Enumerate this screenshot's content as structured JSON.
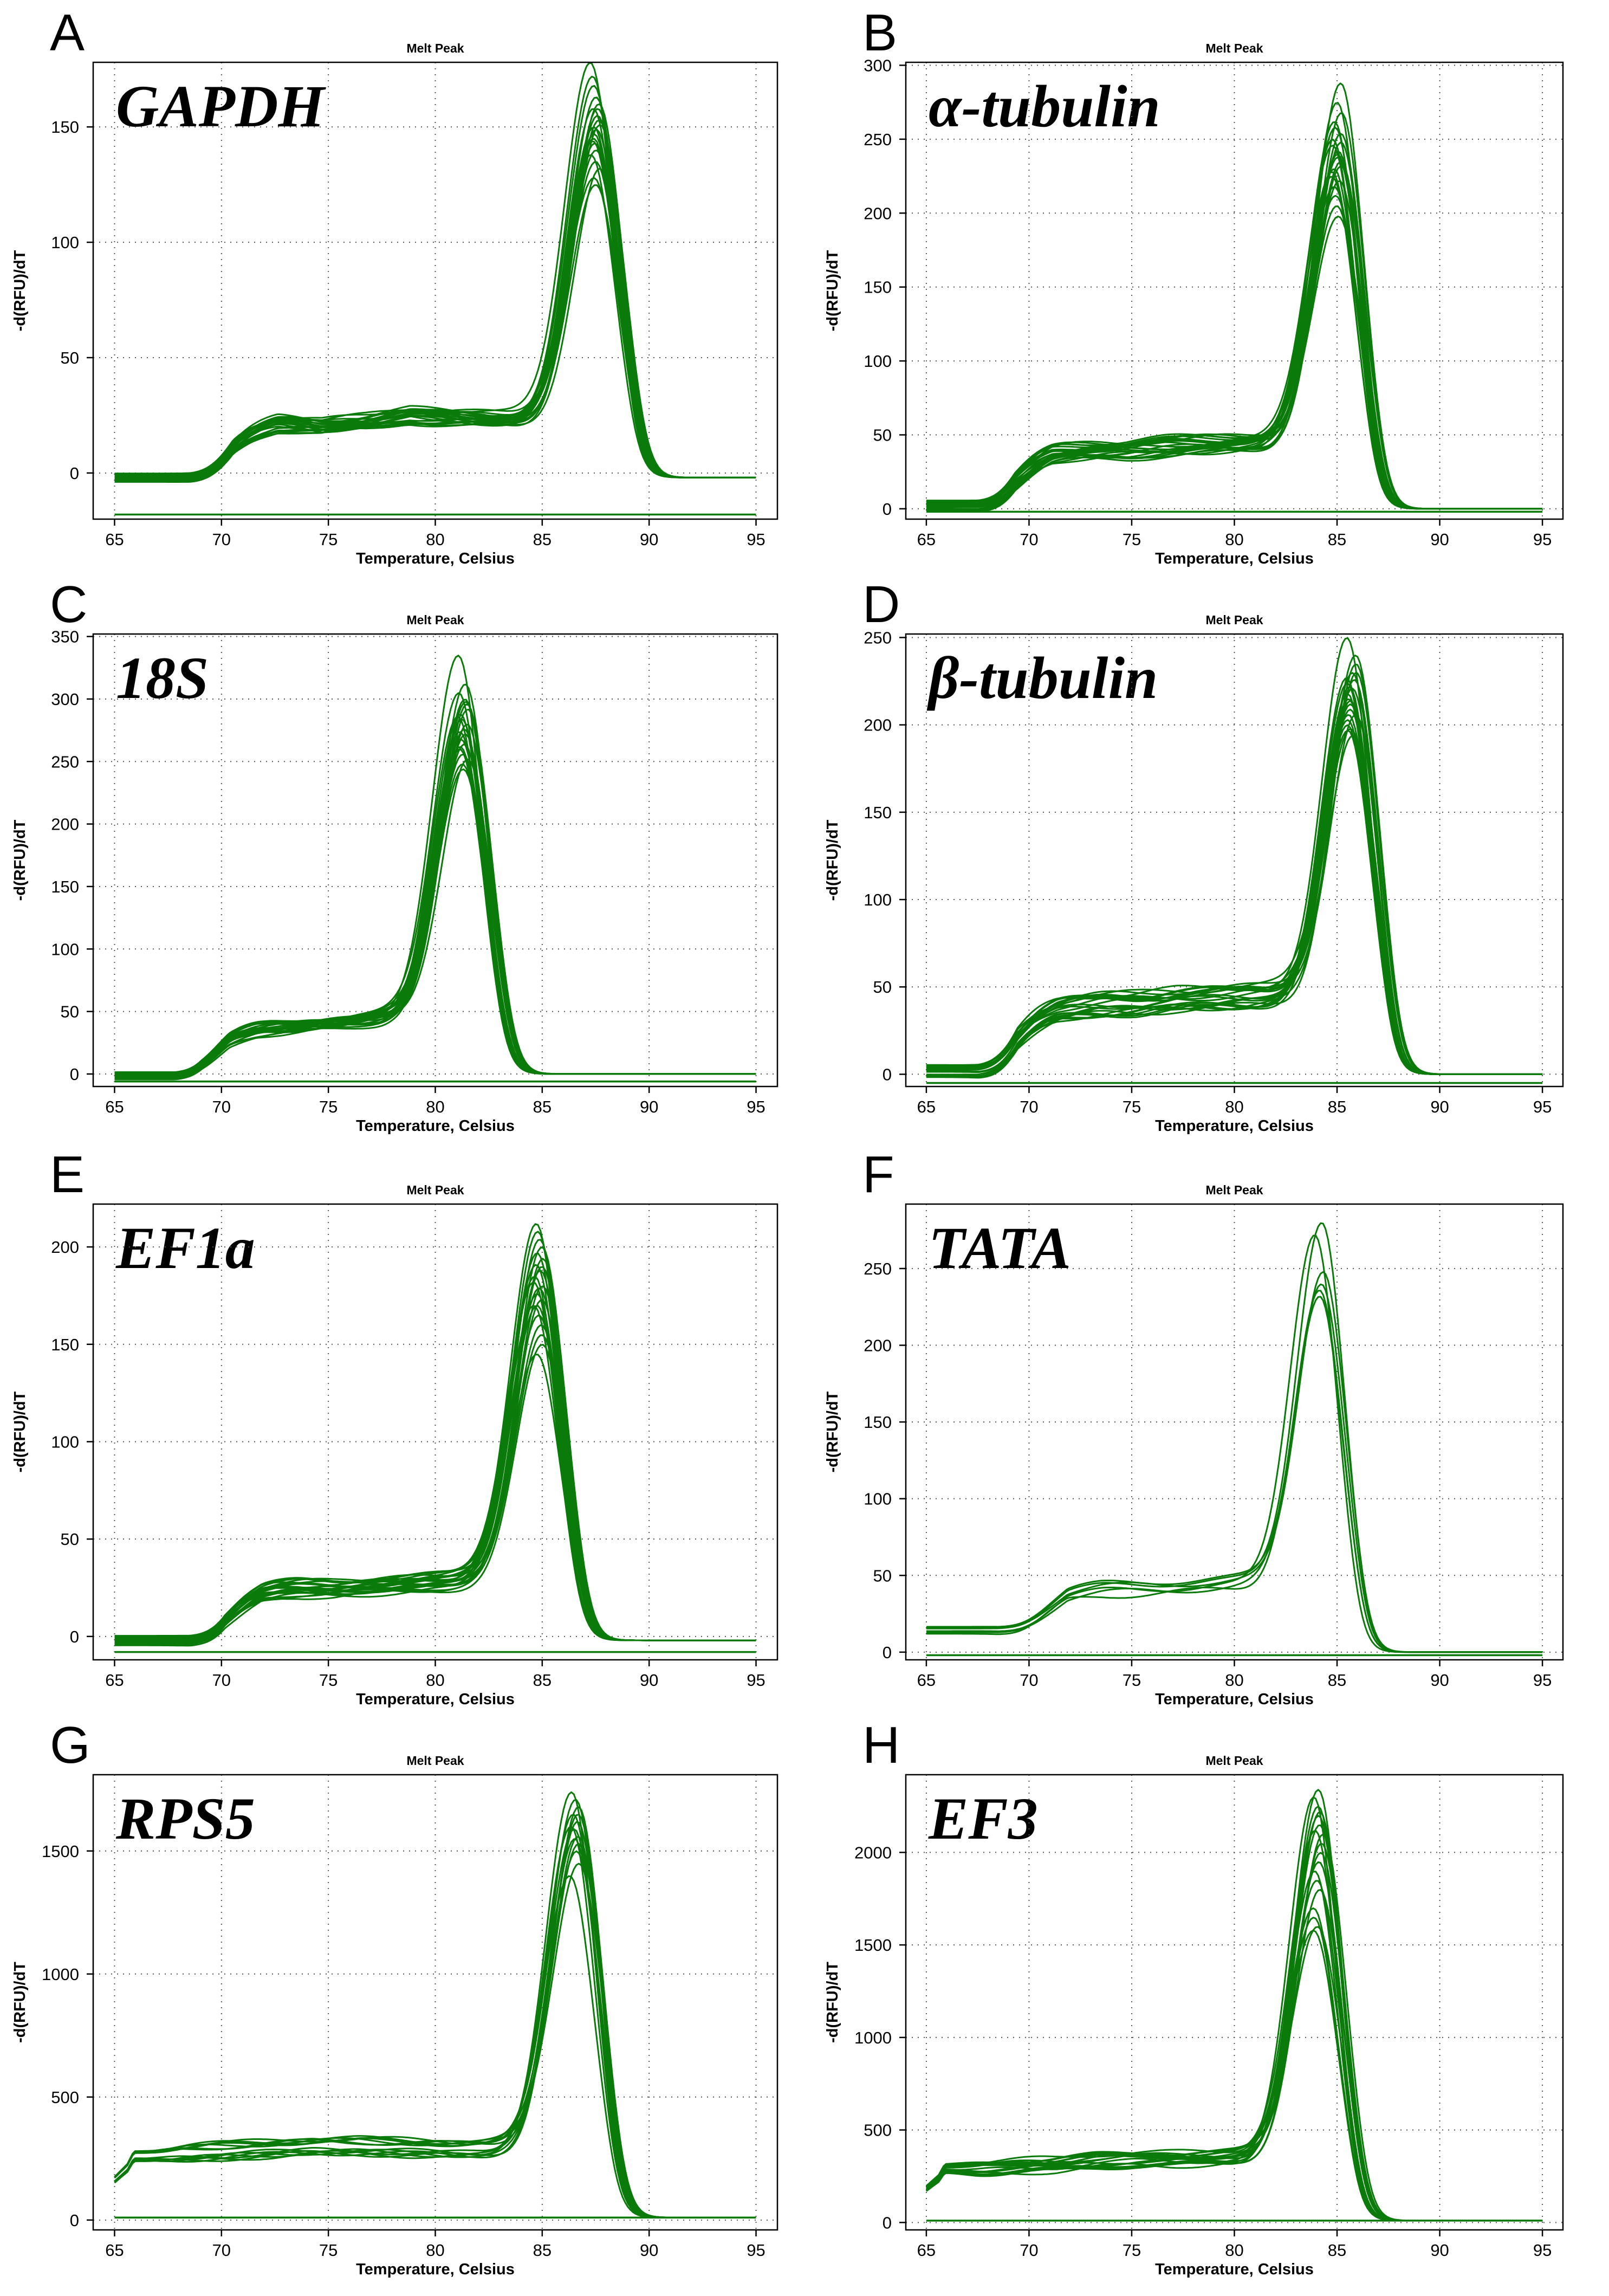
{
  "figure": {
    "curve_color": "#0a7a0a",
    "background": "#ffffff"
  },
  "chart_data": [
    {
      "panel": "A",
      "gene": "GAPDH",
      "type": "line",
      "title": "Melt Peak",
      "xlabel": "Temperature, Celsius",
      "ylabel": "-d(RFU)/dT",
      "xlim": [
        64,
        96
      ],
      "ylim": [
        -20,
        178
      ],
      "xticks": [
        65,
        70,
        75,
        80,
        85,
        90,
        95
      ],
      "yticks": [
        0,
        50,
        100,
        150
      ],
      "baseline": -18,
      "start_wave": false,
      "peak_center": 87.5,
      "rise_sigma": 1.2,
      "fall_sigma": 1.0,
      "plateau_start": 68.5,
      "plateau_end": 85,
      "plateau_values": [
        -2,
        18,
        22,
        20,
        22,
        25,
        24,
        23,
        22
      ],
      "curve_count": 22,
      "peak_heights": [
        178,
        172,
        168,
        163,
        160,
        158,
        155,
        153,
        151,
        149,
        147,
        145,
        143,
        140,
        138,
        135,
        132,
        128,
        125,
        158,
        150,
        144
      ],
      "end_value": -2
    },
    {
      "panel": "B",
      "gene": "α-tubulin",
      "type": "line",
      "title": "Melt Peak",
      "xlabel": "Temperature, Celsius",
      "ylabel": "-d(RFU)/dT",
      "xlim": [
        64,
        96
      ],
      "ylim": [
        -7,
        302
      ],
      "xticks": [
        65,
        70,
        75,
        80,
        85,
        90,
        95
      ],
      "yticks": [
        0,
        50,
        100,
        150,
        200,
        250,
        300
      ],
      "baseline": -2,
      "start_wave": false,
      "peak_center": 85,
      "rise_sigma": 1.2,
      "fall_sigma": 1.0,
      "plateau_start": 67.5,
      "plateau_end": 82,
      "plateau_values": [
        2,
        30,
        38,
        39,
        40,
        42,
        43,
        44,
        45
      ],
      "curve_count": 22,
      "peak_heights": [
        288,
        275,
        268,
        262,
        258,
        254,
        250,
        246,
        242,
        238,
        235,
        232,
        228,
        225,
        222,
        218,
        212,
        205,
        198,
        248,
        240,
        230
      ],
      "end_value": 0
    },
    {
      "panel": "C",
      "gene": "18S",
      "type": "line",
      "title": "Melt Peak",
      "xlabel": "Temperature, Celsius",
      "ylabel": "-d(RFU)/dT",
      "xlim": [
        64,
        96
      ],
      "ylim": [
        -10,
        352
      ],
      "xticks": [
        65,
        70,
        75,
        80,
        85,
        90,
        95
      ],
      "yticks": [
        0,
        50,
        100,
        150,
        200,
        250,
        300,
        350
      ],
      "baseline": -6,
      "start_wave": false,
      "peak_center": 81.3,
      "rise_sigma": 1.2,
      "fall_sigma": 1.0,
      "plateau_start": 67.8,
      "plateau_end": 78,
      "plateau_values": [
        -2,
        22,
        33,
        35,
        36,
        38,
        40,
        42,
        44
      ],
      "curve_count": 22,
      "peak_heights": [
        335,
        312,
        305,
        300,
        296,
        292,
        288,
        284,
        280,
        276,
        272,
        268,
        264,
        260,
        256,
        252,
        248,
        244,
        298,
        286,
        274,
        262
      ],
      "end_value": 0
    },
    {
      "panel": "D",
      "gene": "β-tubulin",
      "type": "line",
      "title": "Melt Peak",
      "xlabel": "Temperature, Celsius",
      "ylabel": "-d(RFU)/dT",
      "xlim": [
        64,
        96
      ],
      "ylim": [
        -7,
        252
      ],
      "xticks": [
        65,
        70,
        75,
        80,
        85,
        90,
        95
      ],
      "yticks": [
        0,
        50,
        100,
        150,
        200,
        250
      ],
      "baseline": -5,
      "start_wave": false,
      "peak_center": 85.7,
      "rise_sigma": 1.2,
      "fall_sigma": 1.0,
      "plateau_start": 67.5,
      "plateau_end": 83,
      "plateau_values": [
        2,
        32,
        38,
        40,
        41,
        43,
        44,
        45,
        46
      ],
      "curve_count": 22,
      "peak_heights": [
        250,
        240,
        235,
        230,
        227,
        224,
        221,
        218,
        215,
        212,
        209,
        206,
        203,
        200,
        197,
        194,
        230,
        222,
        214,
        206,
        198,
        226
      ],
      "end_value": 0
    },
    {
      "panel": "E",
      "gene": "EF1a",
      "type": "line",
      "title": "Melt Peak",
      "xlabel": "Temperature, Celsius",
      "ylabel": "-d(RFU)/dT",
      "xlim": [
        64,
        96
      ],
      "ylim": [
        -12,
        222
      ],
      "xticks": [
        65,
        70,
        75,
        80,
        85,
        90,
        95
      ],
      "yticks": [
        0,
        50,
        100,
        150,
        200
      ],
      "baseline": -8,
      "start_wave": false,
      "peak_center": 84.8,
      "rise_sigma": 1.2,
      "fall_sigma": 1.0,
      "plateau_start": 68.5,
      "plateau_end": 82,
      "plateau_values": [
        -2,
        18,
        24,
        25,
        25,
        26,
        27,
        28,
        29
      ],
      "curve_count": 22,
      "peak_heights": [
        212,
        208,
        204,
        200,
        197,
        194,
        191,
        188,
        185,
        182,
        179,
        176,
        173,
        170,
        165,
        160,
        155,
        150,
        145,
        190,
        180,
        170
      ],
      "end_value": -2
    },
    {
      "panel": "F",
      "gene": "TATA",
      "type": "line",
      "title": "Melt Peak",
      "xlabel": "Temperature, Celsius",
      "ylabel": "-d(RFU)/dT",
      "xlim": [
        64,
        96
      ],
      "ylim": [
        -5,
        292
      ],
      "xticks": [
        65,
        70,
        75,
        80,
        85,
        90,
        95
      ],
      "yticks": [
        0,
        50,
        100,
        150,
        200,
        250
      ],
      "baseline": -2,
      "start_wave": false,
      "peak_center": 84.1,
      "rise_sigma": 1.2,
      "fall_sigma": 1.0,
      "plateau_start": 68.5,
      "plateau_end": 82,
      "plateau_values": [
        15,
        28,
        40,
        42,
        43,
        44,
        45,
        46,
        47
      ],
      "curve_count": 6,
      "peak_heights": [
        280,
        272,
        248,
        240,
        236,
        232
      ],
      "end_value": 0
    },
    {
      "panel": "G",
      "gene": "RPS5",
      "type": "line",
      "title": "Melt Peak",
      "xlabel": "Temperature, Celsius",
      "ylabel": "-d(RFU)/dT",
      "xlim": [
        64,
        96
      ],
      "ylim": [
        -40,
        1810
      ],
      "xticks": [
        65,
        70,
        75,
        80,
        85,
        90,
        95
      ],
      "yticks": [
        0,
        500,
        1000,
        1500
      ],
      "baseline": 10,
      "start_wave": true,
      "peak_center": 86.5,
      "rise_sigma": 1.2,
      "fall_sigma": 1.0,
      "plateau_start": 65.5,
      "plateau_end": 83,
      "plateau_values": [
        260,
        270,
        280,
        290,
        300,
        300,
        295,
        290,
        290
      ],
      "curve_count": 14,
      "peak_heights": [
        1740,
        1710,
        1680,
        1650,
        1620,
        1590,
        1560,
        1530,
        1500,
        1450,
        1400,
        1650,
        1600,
        1550
      ],
      "end_value": 10
    },
    {
      "panel": "H",
      "gene": "EF3",
      "type": "line",
      "title": "Melt Peak",
      "xlabel": "Temperature, Celsius",
      "ylabel": "-d(RFU)/dT",
      "xlim": [
        64,
        96
      ],
      "ylim": [
        -40,
        2420
      ],
      "xticks": [
        65,
        70,
        75,
        80,
        85,
        90,
        95
      ],
      "yticks": [
        0,
        500,
        1000,
        1500,
        2000
      ],
      "baseline": 10,
      "start_wave": true,
      "peak_center": 84.1,
      "rise_sigma": 1.2,
      "fall_sigma": 1.0,
      "plateau_start": 65.5,
      "plateau_end": 81,
      "plateau_values": [
        290,
        290,
        300,
        310,
        330,
        340,
        340,
        345,
        350
      ],
      "curve_count": 18,
      "peak_heights": [
        2340,
        2300,
        2250,
        2200,
        2150,
        2100,
        2050,
        2000,
        1950,
        1900,
        1850,
        1800,
        1700,
        1650,
        1600,
        1580,
        2220,
        2120
      ],
      "end_value": 10
    }
  ]
}
